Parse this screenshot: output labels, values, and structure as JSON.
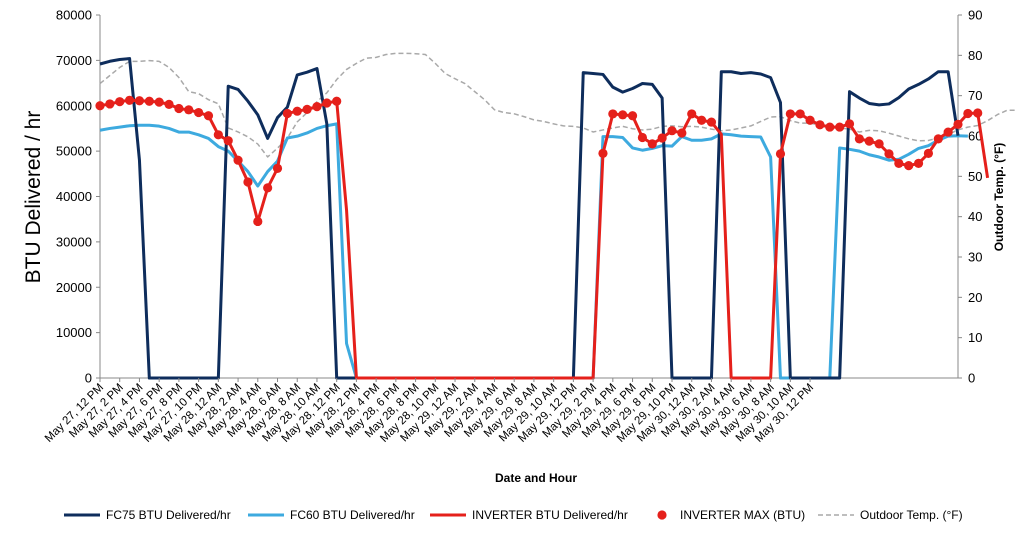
{
  "chart_data": {
    "type": "line",
    "title": "",
    "xlabel": "Date and Hour",
    "ylabel": "BTU Delivered / hr",
    "y2label": "Outdoor Temp. (°F)",
    "ylim": [
      0,
      80000
    ],
    "y2lim": [
      0,
      90
    ],
    "yticks": [
      0,
      10000,
      20000,
      30000,
      40000,
      50000,
      60000,
      70000,
      80000
    ],
    "y2ticks": [
      0,
      10,
      20,
      30,
      40,
      50,
      60,
      70,
      80,
      90
    ],
    "grid": false,
    "legend_position": "bottom",
    "x_labels": [
      "May 27, 12 PM",
      "May 27, 2 PM",
      "May 27, 4 PM",
      "May 27, 6 PM",
      "May 27, 8 PM",
      "May 27, 10 PM",
      "May 28, 12 AM",
      "May 28, 2 AM",
      "May 28, 4 AM",
      "May 28, 6 AM",
      "May 28, 8 AM",
      "May 28, 10 AM",
      "May 28, 12 PM",
      "May 28, 2 PM",
      "May 28, 4 PM",
      "May 28, 6 PM",
      "May 28, 8 PM",
      "May 28, 10 PM",
      "May 29, 12 AM",
      "May 29, 2 AM",
      "May 29, 4 AM",
      "May 29, 6 AM",
      "May 29, 8 AM",
      "May 29, 10 AM",
      "May 29, 12 PM",
      "May 29, 2 PM",
      "May 29, 4 PM",
      "May 29, 6 PM",
      "May 29, 8 PM",
      "May 29, 10 PM",
      "May 30, 12 AM",
      "May 30, 2 AM",
      "May 30, 4 AM",
      "May 30, 6 AM",
      "May 30, 8 AM",
      "May 30, 10 AM",
      "May 30, 12 PM"
    ],
    "series": [
      {
        "name": "FC75 BTU Delivered/hr",
        "color": "#0e2d5c",
        "style": "line",
        "axis": "left",
        "values": [
          69200,
          69800,
          70200,
          70400,
          48000,
          0,
          0,
          0,
          0,
          0,
          0,
          0,
          0,
          64300,
          63600,
          61000,
          58000,
          52800,
          57400,
          59700,
          66800,
          67400,
          68200,
          56000,
          0,
          0,
          0,
          0,
          0,
          0,
          0,
          0,
          0,
          0,
          0,
          0,
          0,
          0,
          0,
          0,
          0,
          0,
          0,
          0,
          0,
          0,
          0,
          0,
          0,
          67300,
          67100,
          66900,
          64100,
          63000,
          63800,
          64900,
          64700,
          61700,
          0,
          0,
          0,
          0,
          0,
          67500,
          67500,
          67100,
          67300,
          67000,
          66200,
          60700,
          0,
          0,
          0,
          0,
          0,
          0,
          63100,
          61700,
          60500,
          60200,
          60400,
          61800,
          63700,
          64700,
          65900,
          67500,
          67500,
          53400
        ]
      },
      {
        "name": "FC60 BTU Delivered/hr",
        "color": "#3daadf",
        "style": "line",
        "axis": "left",
        "values": [
          54600,
          55000,
          55300,
          55600,
          55700,
          55700,
          55500,
          55000,
          54200,
          54200,
          53600,
          52800,
          51000,
          50000,
          47800,
          45500,
          42300,
          45500,
          47800,
          52900,
          53300,
          54000,
          55000,
          55600,
          56000,
          7600,
          0,
          0,
          0,
          0,
          0,
          0,
          0,
          0,
          0,
          0,
          0,
          0,
          0,
          0,
          0,
          0,
          0,
          0,
          0,
          0,
          0,
          0,
          0,
          0,
          0,
          53200,
          53200,
          53000,
          50700,
          50200,
          50600,
          51200,
          51100,
          53200,
          52400,
          52400,
          52700,
          53800,
          53600,
          53300,
          53200,
          53100,
          48700,
          0,
          0,
          0,
          0,
          0,
          0,
          50700,
          50400,
          50000,
          49200,
          48700,
          48000,
          48200,
          49300,
          50600,
          51200,
          52400,
          53300,
          53400,
          53300
        ]
      },
      {
        "name": "INVERTER BTU Delivered/hr",
        "color": "#e5201b",
        "style": "line",
        "axis": "left",
        "values": [
          60000,
          60400,
          60900,
          61200,
          61100,
          61000,
          60800,
          60300,
          59400,
          59100,
          58500,
          57800,
          53600,
          52300,
          48000,
          43200,
          34500,
          41900,
          46200,
          58300,
          58800,
          59200,
          59800,
          60600,
          61000,
          37000,
          0,
          0,
          0,
          0,
          0,
          0,
          0,
          0,
          0,
          0,
          0,
          0,
          0,
          0,
          0,
          0,
          0,
          0,
          0,
          0,
          0,
          0,
          0,
          0,
          0,
          49500,
          58200,
          58000,
          57800,
          53000,
          51600,
          52900,
          54500,
          54000,
          58200,
          56800,
          56400,
          53700,
          0,
          0,
          0,
          0,
          0,
          49400,
          58200,
          58200,
          56800,
          55800,
          55300,
          55300,
          56000,
          52700,
          52200,
          51600,
          49400,
          47300,
          46800,
          47300,
          49500,
          52700,
          54200,
          55900,
          58300,
          58400,
          44100
        ]
      },
      {
        "name": "INVERTER MAX (BTU)",
        "color": "#e5201b",
        "style": "marker",
        "axis": "left",
        "values": [
          60000,
          60400,
          60900,
          61200,
          61100,
          61000,
          60800,
          60300,
          59400,
          59100,
          58500,
          57800,
          53600,
          52300,
          48000,
          43200,
          34500,
          41900,
          46200,
          58300,
          58800,
          59200,
          59800,
          60600,
          61000,
          null,
          null,
          null,
          null,
          null,
          null,
          null,
          null,
          null,
          null,
          null,
          null,
          null,
          null,
          null,
          null,
          null,
          null,
          null,
          null,
          null,
          null,
          null,
          null,
          null,
          null,
          49500,
          58200,
          58000,
          57800,
          53000,
          51600,
          52900,
          54500,
          54000,
          58200,
          56800,
          56400,
          null,
          null,
          null,
          null,
          null,
          null,
          49400,
          58200,
          58200,
          56800,
          55800,
          55300,
          55300,
          56000,
          52700,
          52200,
          51600,
          49400,
          47300,
          46800,
          47300,
          49500,
          52700,
          54200,
          55900,
          58300,
          58400,
          null
        ]
      },
      {
        "name": "Outdoor Temp. (°F)",
        "color": "#a9a9a9",
        "style": "dashed",
        "axis": "right",
        "values": [
          73.0,
          75.0,
          77.0,
          78.5,
          78.5,
          78.7,
          78.5,
          77.0,
          74.5,
          71.0,
          70.5,
          69.0,
          68.0,
          62.0,
          61.0,
          59.8,
          58.0,
          54.8,
          57.0,
          59.5,
          63.5,
          65.8,
          68.5,
          70.7,
          74.0,
          76.5,
          78.0,
          79.3,
          79.5,
          80.2,
          80.5,
          80.5,
          80.4,
          80.2,
          78.0,
          75.5,
          74.2,
          73.0,
          71.0,
          69.0,
          66.5,
          65.8,
          65.5,
          64.8,
          64.0,
          63.6,
          63.0,
          62.5,
          62.4,
          62.0,
          61.0,
          61.5,
          62.0,
          62.4,
          61.8,
          61.5,
          61.7,
          62.4,
          62.5,
          62.3,
          62.4,
          62.2,
          61.7,
          61.3,
          61.5,
          62.0,
          62.5,
          63.6,
          64.7,
          64.8,
          63.8,
          63.2,
          63.2,
          62.7,
          62.2,
          62.0,
          61.7,
          61.0,
          61.4,
          61.3,
          60.7,
          60.0,
          59.3,
          58.8,
          58.9,
          59.5,
          60.4,
          61.5,
          62.2,
          62.6,
          63.8,
          65.3,
          66.4,
          66.4
        ]
      }
    ]
  }
}
